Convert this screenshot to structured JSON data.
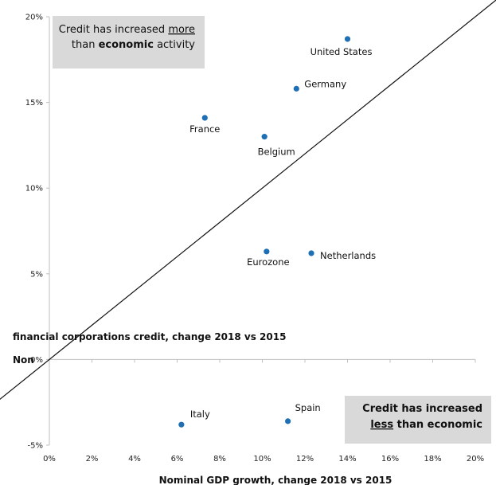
{
  "chart_data": {
    "type": "scatter",
    "xlabel": "Nominal GDP growth, change 2018 vs 2015",
    "ylabel_line1": "financial corporations credit, change 2018 vs 2015",
    "ylabel_line2": "Non",
    "xlim": [
      0,
      20
    ],
    "ylim": [
      -5,
      20
    ],
    "x_ticks": [
      0,
      2,
      4,
      6,
      8,
      10,
      12,
      14,
      16,
      18,
      20
    ],
    "x_tick_labels": [
      "0%",
      "2%",
      "4%",
      "6%",
      "8%",
      "10%",
      "12%",
      "14%",
      "16%",
      "18%",
      "20%"
    ],
    "y_ticks": [
      -5,
      0,
      5,
      10,
      15,
      20
    ],
    "y_tick_labels": [
      "-5%",
      "0%",
      "5%",
      "10%",
      "15%",
      "20%"
    ],
    "reference_line": "y = x",
    "grid": false,
    "marker_color": "#1f6fb5",
    "points": [
      {
        "label": "United States",
        "x": 14.0,
        "y": 18.7
      },
      {
        "label": "Germany",
        "x": 11.6,
        "y": 15.8
      },
      {
        "label": "France",
        "x": 7.3,
        "y": 14.1
      },
      {
        "label": "Belgium",
        "x": 10.1,
        "y": 13.0
      },
      {
        "label": "Eurozone",
        "x": 10.2,
        "y": 6.3
      },
      {
        "label": "Netherlands",
        "x": 12.3,
        "y": 6.2
      },
      {
        "label": "Italy",
        "x": 6.2,
        "y": -3.8
      },
      {
        "label": "Spain",
        "x": 11.2,
        "y": -3.6
      }
    ],
    "annotations": {
      "top_left": {
        "line1_a": "Credit has increased ",
        "line1_b": "more",
        "line2_a": "than ",
        "line2_b": "economic",
        "line2_c": " activity",
        "box_color": "#d9d9d9"
      },
      "bottom_right": {
        "line1": "Credit has increased",
        "line2_a": "less",
        "line2_b": " than economic",
        "box_color": "#d9d9d9"
      }
    }
  }
}
